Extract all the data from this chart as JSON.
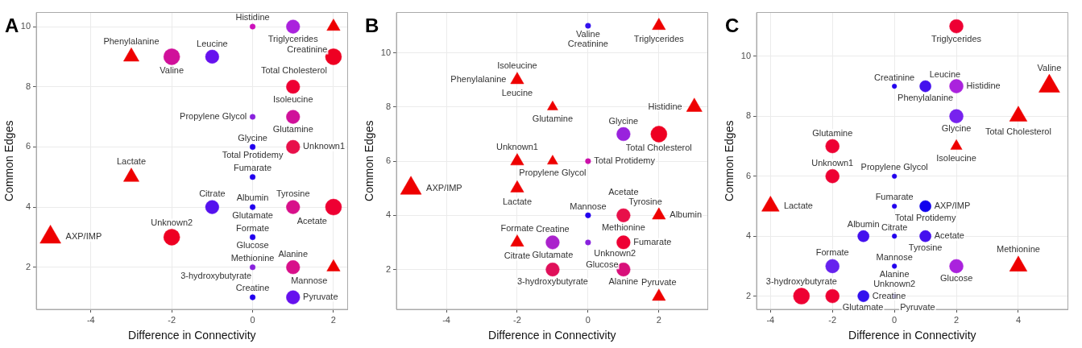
{
  "chart_data": [
    {
      "type": "bubble",
      "title": "A",
      "xlabel": "Difference in Connectivity",
      "ylabel": "Common Edges",
      "xlim": [
        -5.35,
        2.35
      ],
      "xticks": [
        -4,
        -2,
        0,
        2
      ],
      "ylim": [
        0.6,
        10.47
      ],
      "yticks": [
        2,
        4,
        6,
        8,
        10
      ],
      "grid": true,
      "series": [
        {
          "marker": "circle",
          "x": [
            0,
            1,
            -2,
            -1,
            2,
            1,
            0,
            1,
            0,
            1,
            0,
            -1,
            0,
            1,
            2,
            -2,
            0,
            0,
            1,
            0,
            1
          ],
          "values": [
            10,
            10,
            9,
            9,
            9,
            8,
            7,
            7,
            6,
            6,
            5,
            4,
            4,
            4,
            4,
            3,
            3,
            2,
            2,
            1,
            1
          ],
          "sizes": [
            0.11,
            0.7,
            1,
            0.7,
            1,
            0.7,
            0.11,
            0.7,
            0.11,
            0.7,
            0.11,
            0.7,
            0.11,
            0.7,
            1,
            1,
            0.11,
            0.11,
            0.7,
            0.11,
            0.7
          ],
          "colors": [
            "#cc11bb",
            "#aa22dd",
            "#d0109a",
            "#6611ee",
            "#ee0022",
            "#ee0033",
            "#8822dd",
            "#d0109a",
            "#2200ee",
            "#e8104a",
            "#2200ee",
            "#5511ee",
            "#2200ee",
            "#d8108a",
            "#ee0033",
            "#ee0022",
            "#2200ee",
            "#8822dd",
            "#d8108a",
            "#2200ee",
            "#6611ee"
          ]
        },
        {
          "marker": "triangle",
          "x": [
            2,
            -3,
            -3,
            -5,
            2
          ],
          "values": [
            10,
            9,
            5,
            3,
            2
          ],
          "sizes": [
            0.4,
            0.55,
            0.55,
            1,
            0.4
          ],
          "colors": [
            "#ee0000",
            "#ee0000",
            "#ee0000",
            "#ee0000",
            "#ee0000"
          ]
        }
      ],
      "annotations": [
        {
          "text": "Triglycerides",
          "x": 1,
          "y": 10
        },
        {
          "text": "Histidine",
          "x": 0,
          "y": 10
        },
        {
          "text": "Creatinine",
          "x": 2,
          "y": 10
        },
        {
          "text": "Phenylalanine",
          "x": -3,
          "y": 9
        },
        {
          "text": "Valine",
          "x": -2,
          "y": 9
        },
        {
          "text": "Leucine",
          "x": -1,
          "y": 9
        },
        {
          "text": "Total Cholesterol",
          "x": 2,
          "y": 9
        },
        {
          "text": "Isoleucine",
          "x": 1,
          "y": 8
        },
        {
          "text": "Propylene Glycol",
          "x": 0,
          "y": 7
        },
        {
          "text": "Glutamine",
          "x": 1,
          "y": 7
        },
        {
          "text": "Glycine",
          "x": 0,
          "y": 6
        },
        {
          "text": "Total Protidemy",
          "x": 0,
          "y": 6
        },
        {
          "text": "Unknown1",
          "x": 1,
          "y": 6
        },
        {
          "text": "Fumarate",
          "x": 0,
          "y": 5
        },
        {
          "text": "Lactate",
          "x": -3,
          "y": 5
        },
        {
          "text": "Citrate",
          "x": -1,
          "y": 4
        },
        {
          "text": "Albumin",
          "x": 0,
          "y": 4
        },
        {
          "text": "Glutamate",
          "x": 0,
          "y": 4
        },
        {
          "text": "Tyrosine",
          "x": 1,
          "y": 4
        },
        {
          "text": "Acetate",
          "x": 2,
          "y": 4
        },
        {
          "text": "AXP/IMP",
          "x": -5,
          "y": 3
        },
        {
          "text": "Unknown2",
          "x": -2,
          "y": 3
        },
        {
          "text": "Formate",
          "x": 0,
          "y": 3
        },
        {
          "text": "Glucose",
          "x": 0,
          "y": 3
        },
        {
          "text": "Methionine",
          "x": 0,
          "y": 2
        },
        {
          "text": "3-hydroxybutyrate",
          "x": 0,
          "y": 2
        },
        {
          "text": "Alanine",
          "x": 1,
          "y": 2
        },
        {
          "text": "Mannose",
          "x": 2,
          "y": 2
        },
        {
          "text": "Creatine",
          "x": 0,
          "y": 1
        },
        {
          "text": "Pyruvate",
          "x": 1,
          "y": 1
        }
      ]
    },
    {
      "type": "bubble",
      "title": "B",
      "xlabel": "Difference in Connectivity",
      "ylabel": "Common Edges",
      "xlim": [
        -5.41,
        3.38
      ],
      "xticks": [
        -4,
        -2,
        0,
        2
      ],
      "ylim": [
        0.53,
        11.49
      ],
      "yticks": [
        2,
        4,
        6,
        8,
        10
      ],
      "grid": true,
      "series": [
        {
          "marker": "circle",
          "x": [
            0,
            1,
            2,
            0,
            0,
            1,
            -1,
            0,
            1,
            -1,
            1
          ],
          "values": [
            11,
            7,
            7,
            6,
            4,
            4,
            3,
            3,
            3,
            2,
            2
          ],
          "sizes": [
            0.11,
            0.7,
            1,
            0.11,
            0.11,
            0.7,
            0.7,
            0.11,
            0.7,
            0.7,
            0.7
          ],
          "colors": [
            "#3311ee",
            "#9922dd",
            "#ee0022",
            "#cc11aa",
            "#2200ee",
            "#e8104a",
            "#aa22cc",
            "#8822dd",
            "#ee0033",
            "#e0105a",
            "#d8107a"
          ]
        },
        {
          "marker": "triangle",
          "x": [
            2,
            -2,
            -1,
            3,
            -2,
            -1,
            -5,
            -2,
            2,
            -2,
            2
          ],
          "values": [
            11,
            9,
            8,
            8,
            6,
            6,
            5,
            5,
            4,
            3,
            1
          ],
          "sizes": [
            0.4,
            0.4,
            0.25,
            0.55,
            0.4,
            0.25,
            1,
            0.4,
            0.4,
            0.4,
            0.4
          ],
          "colors": [
            "#ee0000",
            "#ee0000",
            "#ee0000",
            "#ee0000",
            "#ee0000",
            "#ee0000",
            "#ee0000",
            "#ee0000",
            "#ee0000",
            "#ee0000",
            "#ee0000"
          ]
        }
      ],
      "annotations": [
        {
          "text": "Valine",
          "x": 0,
          "y": 11
        },
        {
          "text": "Creatinine",
          "x": 0,
          "y": 11
        },
        {
          "text": "Triglycerides",
          "x": 2,
          "y": 11
        },
        {
          "text": "Isoleucine",
          "x": -2,
          "y": 9
        },
        {
          "text": "Leucine",
          "x": -2,
          "y": 9
        },
        {
          "text": "Phenylalanine",
          "x": -2,
          "y": 9
        },
        {
          "text": "Glutamine",
          "x": -1,
          "y": 8
        },
        {
          "text": "Histidine",
          "x": 3,
          "y": 8
        },
        {
          "text": "Glycine",
          "x": 1,
          "y": 7
        },
        {
          "text": "Total Cholesterol",
          "x": 2,
          "y": 7
        },
        {
          "text": "Unknown1",
          "x": -2,
          "y": 6
        },
        {
          "text": "Propylene Glycol",
          "x": -1,
          "y": 6
        },
        {
          "text": "Total Protidemy",
          "x": 0,
          "y": 6
        },
        {
          "text": "AXP/IMP",
          "x": -5,
          "y": 5
        },
        {
          "text": "Lactate",
          "x": -2,
          "y": 5
        },
        {
          "text": "Mannose",
          "x": 0,
          "y": 4
        },
        {
          "text": "Methionine",
          "x": 1,
          "y": 4
        },
        {
          "text": "Tyrosine",
          "x": 1,
          "y": 4
        },
        {
          "text": "Acetate",
          "x": 1,
          "y": 4
        },
        {
          "text": "Albumin",
          "x": 2,
          "y": 4
        },
        {
          "text": "Formate",
          "x": -2,
          "y": 3
        },
        {
          "text": "Citrate",
          "x": -2,
          "y": 3
        },
        {
          "text": "Glutamate",
          "x": -1,
          "y": 3
        },
        {
          "text": "Creatine",
          "x": -1,
          "y": 3
        },
        {
          "text": "Unknown2",
          "x": 0,
          "y": 3
        },
        {
          "text": "Fumarate",
          "x": 1,
          "y": 3
        },
        {
          "text": "Glucose",
          "x": 1,
          "y": 3
        },
        {
          "text": "3-hydroxybutyrate",
          "x": -1,
          "y": 2
        },
        {
          "text": "Alanine",
          "x": 1,
          "y": 2
        },
        {
          "text": "Pyruvate",
          "x": 2,
          "y": 1
        }
      ]
    },
    {
      "type": "bubble",
      "title": "C",
      "xlabel": "Difference in Connectivity",
      "ylabel": "Common Edges",
      "xlim": [
        -4.45,
        5.6
      ],
      "xticks": [
        -4,
        -2,
        0,
        2,
        4
      ],
      "ylim": [
        1.56,
        11.46
      ],
      "yticks": [
        2,
        4,
        6,
        8,
        10
      ],
      "grid": true,
      "series": [
        {
          "marker": "circle",
          "x": [
            2,
            0,
            1,
            2,
            2,
            -2,
            -2,
            0,
            0,
            1,
            -1,
            0,
            1,
            -2,
            0,
            2,
            -3,
            -2,
            -1,
            0
          ],
          "values": [
            11,
            9,
            9,
            9,
            8,
            7,
            6,
            6,
            5,
            5,
            4,
            4,
            4,
            3,
            3,
            3,
            2,
            2,
            2,
            2
          ],
          "sizes": [
            0.72,
            0.08,
            0.5,
            0.72,
            0.72,
            0.72,
            0.72,
            0.08,
            0.08,
            0.5,
            0.5,
            0.08,
            0.5,
            0.72,
            0.08,
            0.72,
            1,
            0.72,
            0.5,
            0.08
          ],
          "colors": [
            "#ee0033",
            "#2200ee",
            "#4411ee",
            "#aa22dd",
            "#7722ee",
            "#ee0033",
            "#ee0033",
            "#2200ee",
            "#2200ee",
            "#1100ee",
            "#4411ee",
            "#2200ee",
            "#4411ee",
            "#6622ee",
            "#2200ee",
            "#aa22dd",
            "#ee0033",
            "#ee0033",
            "#3311ee",
            "#2200ee"
          ]
        },
        {
          "marker": "triangle",
          "x": [
            5,
            4,
            2,
            -4,
            4
          ],
          "values": [
            9,
            8,
            7,
            5,
            3
          ],
          "sizes": [
            1,
            0.7,
            0.3,
            0.7,
            0.7
          ],
          "colors": [
            "#ee0000",
            "#ee0000",
            "#ee0000",
            "#ee0000",
            "#ee0000"
          ]
        }
      ],
      "annotations": [
        {
          "text": "Triglycerides",
          "x": 2,
          "y": 11
        },
        {
          "text": "Creatinine",
          "x": 0,
          "y": 9
        },
        {
          "text": "Phenylalanine",
          "x": 1,
          "y": 9
        },
        {
          "text": "Leucine",
          "x": 1,
          "y": 9
        },
        {
          "text": "Histidine",
          "x": 2,
          "y": 9
        },
        {
          "text": "Valine",
          "x": 5,
          "y": 9
        },
        {
          "text": "Glycine",
          "x": 2,
          "y": 8
        },
        {
          "text": "Total Cholesterol",
          "x": 4,
          "y": 8
        },
        {
          "text": "Isoleucine",
          "x": 2,
          "y": 7
        },
        {
          "text": "Glutamine",
          "x": -2,
          "y": 7
        },
        {
          "text": "Unknown1",
          "x": -2,
          "y": 6
        },
        {
          "text": "Propylene Glycol",
          "x": 0,
          "y": 6
        },
        {
          "text": "Lactate",
          "x": -4,
          "y": 5
        },
        {
          "text": "Fumarate",
          "x": 0,
          "y": 5
        },
        {
          "text": "Total Protidemy",
          "x": 1,
          "y": 5
        },
        {
          "text": "AXP/IMP",
          "x": 1,
          "y": 5
        },
        {
          "text": "Albumin",
          "x": -1,
          "y": 4
        },
        {
          "text": "Citrate",
          "x": 0,
          "y": 4
        },
        {
          "text": "Tyrosine",
          "x": 1,
          "y": 4
        },
        {
          "text": "Acetate",
          "x": 1,
          "y": 4
        },
        {
          "text": "Formate",
          "x": -2,
          "y": 3
        },
        {
          "text": "Mannose",
          "x": 0,
          "y": 3
        },
        {
          "text": "Alanine",
          "x": 0,
          "y": 3
        },
        {
          "text": "Unknown2",
          "x": 0,
          "y": 3
        },
        {
          "text": "Glucose",
          "x": 2,
          "y": 3
        },
        {
          "text": "Methionine",
          "x": 4,
          "y": 3
        },
        {
          "text": "3-hydroxybutyrate",
          "x": -3,
          "y": 2
        },
        {
          "text": "Glutamate",
          "x": -2,
          "y": 2
        },
        {
          "text": "Creatine",
          "x": -1,
          "y": 2
        },
        {
          "text": "Pyruvate",
          "x": 0,
          "y": 2
        }
      ]
    }
  ]
}
